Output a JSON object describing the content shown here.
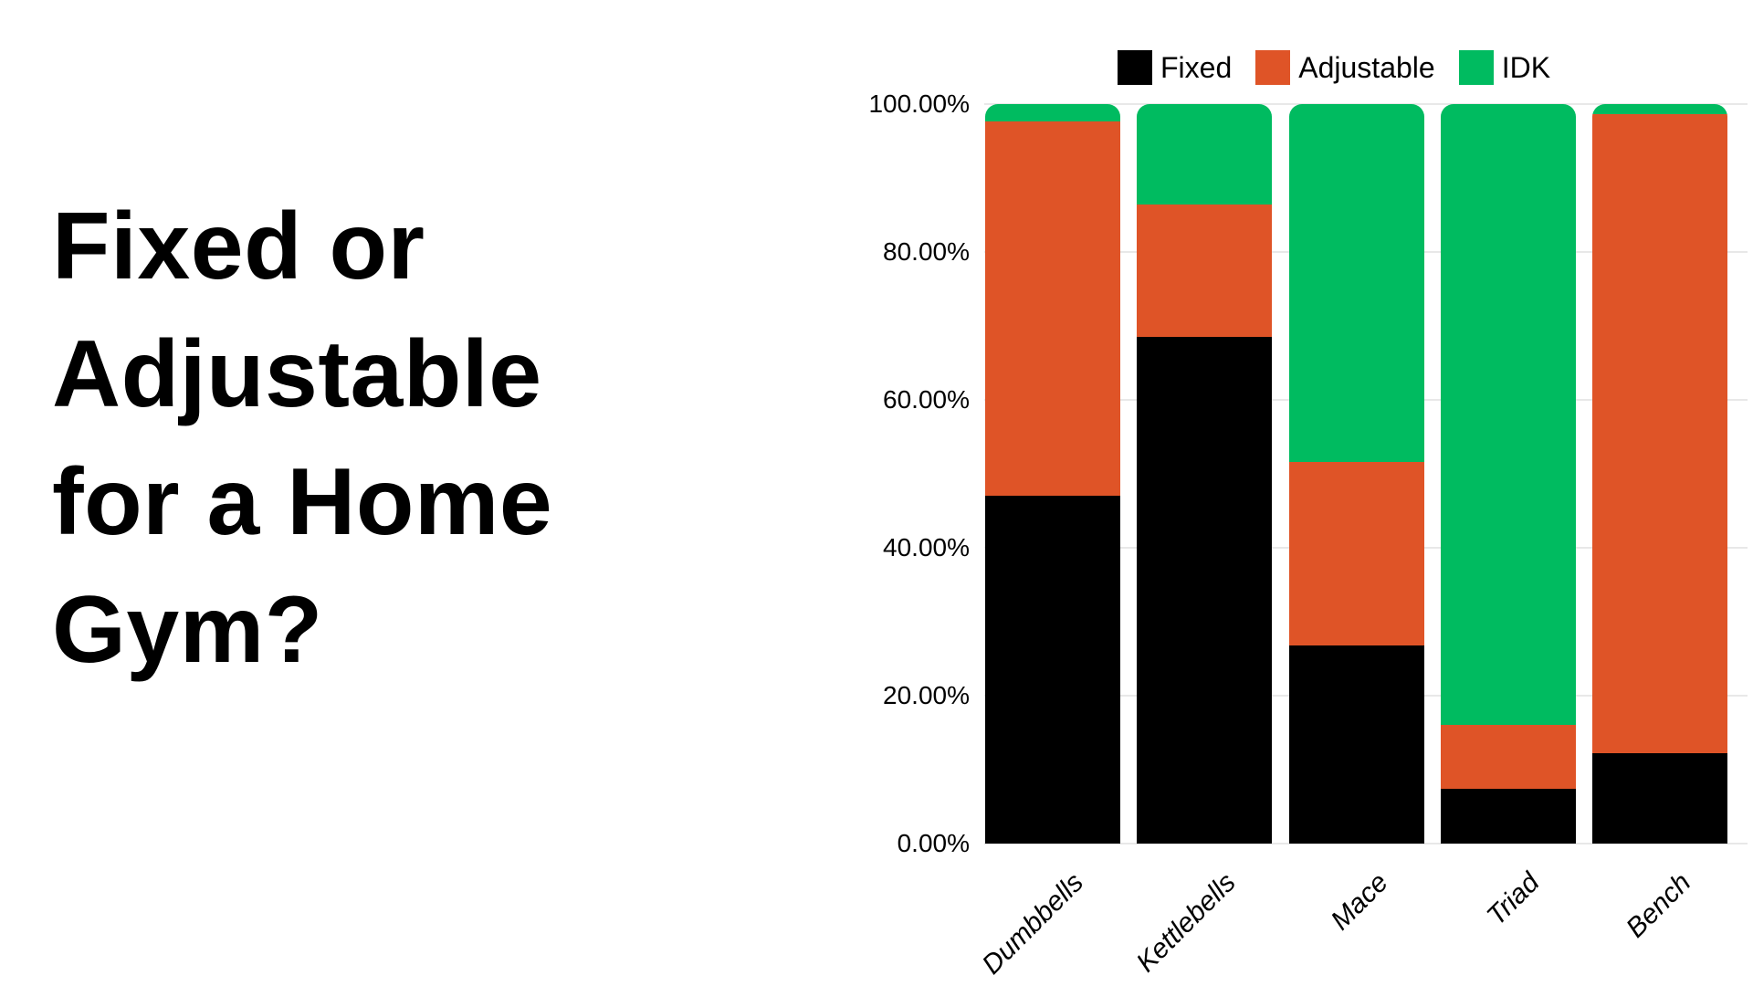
{
  "page": {
    "background_color": "#ffffff",
    "text_color": "#000000"
  },
  "title": {
    "full_text": "Fixed or Adjustable for a Home Gym?",
    "lines": [
      "Fixed or",
      "Adjustable",
      "for a Home",
      "Gym?"
    ],
    "color": "#000000"
  },
  "chart_data": {
    "type": "bar",
    "variant": "stacked-100-percent-column",
    "categories": [
      "Dumbbells",
      "Kettlebells",
      "Mace",
      "Triad",
      "Bench"
    ],
    "series": [
      {
        "name": "Fixed",
        "color": "#000000",
        "values": [
          47.0,
          68.5,
          26.8,
          7.4,
          12.2
        ]
      },
      {
        "name": "Adjustable",
        "color": "#df5427",
        "values": [
          50.6,
          17.9,
          24.8,
          8.6,
          86.4
        ]
      },
      {
        "name": "IDK",
        "color": "#00bb60",
        "values": [
          2.4,
          13.6,
          48.4,
          84.0,
          1.4
        ]
      }
    ],
    "stack_order_bottom_to_top": [
      "Fixed",
      "Adjustable",
      "IDK"
    ],
    "y_axis": {
      "tick_labels_top_to_bottom": [
        "100.00%",
        "80.00%",
        "60.00%",
        "40.00%",
        "20.00%",
        "0.00%"
      ],
      "min": 0,
      "max": 100,
      "unit": "%",
      "grid": true,
      "gridline_color": "#e8e8e8"
    },
    "x_axis": {
      "label_style": "italic",
      "label_rotation_deg": -45
    },
    "legend": {
      "position": "top",
      "entries": [
        "Fixed",
        "Adjustable",
        "IDK"
      ]
    },
    "title": "",
    "xlabel": "",
    "ylabel": ""
  }
}
